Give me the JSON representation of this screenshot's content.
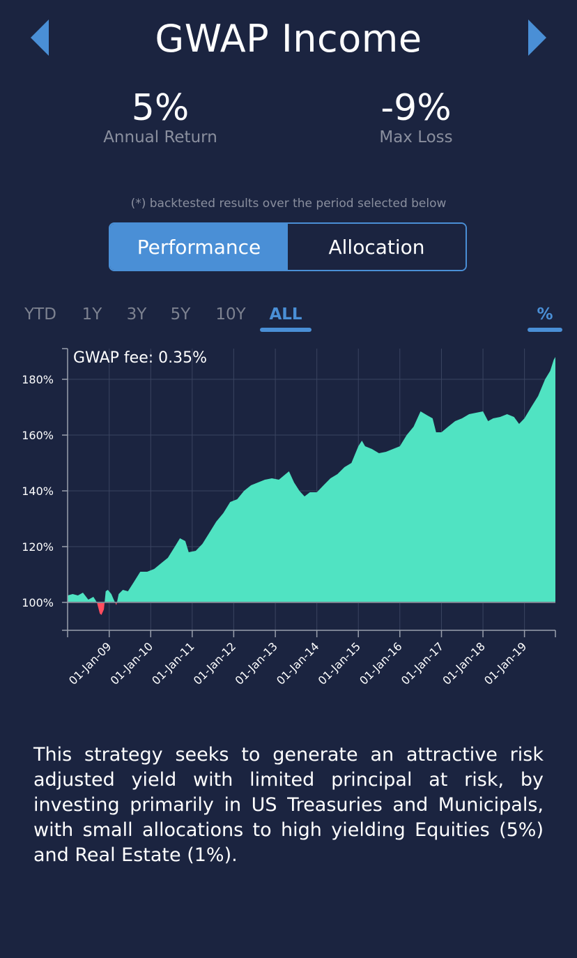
{
  "header": {
    "title": "GWAP Income"
  },
  "stats": {
    "annual_return": {
      "value": "5%",
      "label": "Annual Return"
    },
    "max_loss": {
      "value": "-9%",
      "label": "Max Loss"
    }
  },
  "note": "(*) backtested results over the period selected below",
  "tabs": {
    "performance": "Performance",
    "allocation": "Allocation"
  },
  "ranges": [
    "YTD",
    "1Y",
    "3Y",
    "5Y",
    "10Y",
    "ALL"
  ],
  "selected_range": "ALL",
  "pct_toggle": "%",
  "colors": {
    "background": "#1b2440",
    "accent": "#4a8fd6",
    "gain": "#50e3c2",
    "loss": "#ff4d5e"
  },
  "chart_data": {
    "type": "area",
    "annotation": "GWAP fee: 0.35%",
    "yticks": [
      "100%",
      "120%",
      "140%",
      "160%",
      "180%"
    ],
    "ylim": [
      90,
      191
    ],
    "xticks": [
      "01-Jan-09",
      "01-Jan-10",
      "01-Jan-11",
      "01-Jan-12",
      "01-Jan-13",
      "01-Jan-14",
      "01-Jan-15",
      "01-Jan-16",
      "01-Jan-17",
      "01-Jan-18",
      "01-Jan-19"
    ],
    "x_start": "2008-01-01",
    "x_end": "2019-09-30",
    "grid": true,
    "baseline": 100,
    "series": [
      {
        "points": [
          [
            "2008-01-01",
            102.5
          ],
          [
            "2008-02-15",
            103
          ],
          [
            "2008-04-01",
            102.5
          ],
          [
            "2008-05-15",
            103.5
          ],
          [
            "2008-07-01",
            101
          ],
          [
            "2008-08-15",
            102
          ],
          [
            "2008-09-15",
            100
          ],
          [
            "2008-10-10",
            96
          ],
          [
            "2008-10-25",
            95.5
          ],
          [
            "2008-11-15",
            97.5
          ],
          [
            "2008-12-01",
            104
          ],
          [
            "2008-12-20",
            104.5
          ],
          [
            "2009-01-20",
            103
          ],
          [
            "2009-02-10",
            101
          ],
          [
            "2009-03-05",
            99
          ],
          [
            "2009-03-25",
            103
          ],
          [
            "2009-05-01",
            104.5
          ],
          [
            "2009-06-15",
            104
          ],
          [
            "2009-08-01",
            107
          ],
          [
            "2009-10-01",
            111
          ],
          [
            "2009-12-01",
            111
          ],
          [
            "2010-02-01",
            112
          ],
          [
            "2010-04-01",
            114
          ],
          [
            "2010-06-01",
            116
          ],
          [
            "2010-08-01",
            120
          ],
          [
            "2010-09-15",
            123
          ],
          [
            "2010-11-01",
            122
          ],
          [
            "2010-12-01",
            118
          ],
          [
            "2011-02-01",
            118.5
          ],
          [
            "2011-04-01",
            121
          ],
          [
            "2011-06-01",
            125
          ],
          [
            "2011-08-01",
            129
          ],
          [
            "2011-10-01",
            132
          ],
          [
            "2011-12-01",
            136
          ],
          [
            "2012-02-01",
            137
          ],
          [
            "2012-04-01",
            140
          ],
          [
            "2012-06-01",
            142
          ],
          [
            "2012-08-01",
            143
          ],
          [
            "2012-10-01",
            144
          ],
          [
            "2012-12-01",
            144.5
          ],
          [
            "2013-02-01",
            144
          ],
          [
            "2013-04-01",
            146
          ],
          [
            "2013-05-01",
            147
          ],
          [
            "2013-06-15",
            143
          ],
          [
            "2013-08-01",
            140
          ],
          [
            "2013-09-15",
            138
          ],
          [
            "2013-11-01",
            139.5
          ],
          [
            "2014-01-01",
            139.5
          ],
          [
            "2014-03-01",
            142
          ],
          [
            "2014-05-01",
            144.5
          ],
          [
            "2014-07-01",
            146
          ],
          [
            "2014-09-01",
            148.5
          ],
          [
            "2014-11-01",
            150
          ],
          [
            "2015-01-01",
            156
          ],
          [
            "2015-02-01",
            158
          ],
          [
            "2015-03-01",
            156
          ],
          [
            "2015-05-01",
            155
          ],
          [
            "2015-07-01",
            153.5
          ],
          [
            "2015-09-01",
            154
          ],
          [
            "2015-11-01",
            155
          ],
          [
            "2016-01-01",
            156
          ],
          [
            "2016-03-01",
            160
          ],
          [
            "2016-05-01",
            163
          ],
          [
            "2016-07-01",
            168.5
          ],
          [
            "2016-09-01",
            167
          ],
          [
            "2016-10-15",
            166
          ],
          [
            "2016-11-15",
            161
          ],
          [
            "2017-01-01",
            161
          ],
          [
            "2017-03-01",
            163
          ],
          [
            "2017-05-01",
            165
          ],
          [
            "2017-07-01",
            166
          ],
          [
            "2017-09-01",
            167.5
          ],
          [
            "2017-11-01",
            168
          ],
          [
            "2018-01-01",
            168.5
          ],
          [
            "2018-02-15",
            165
          ],
          [
            "2018-04-01",
            166
          ],
          [
            "2018-06-01",
            166.5
          ],
          [
            "2018-08-01",
            167.5
          ],
          [
            "2018-10-01",
            166.5
          ],
          [
            "2018-11-15",
            164
          ],
          [
            "2019-01-01",
            166
          ],
          [
            "2019-03-01",
            170
          ],
          [
            "2019-05-01",
            174
          ],
          [
            "2019-07-01",
            180
          ],
          [
            "2019-08-15",
            183
          ],
          [
            "2019-09-15",
            187
          ],
          [
            "2019-09-30",
            188
          ]
        ]
      }
    ]
  },
  "description": "This strategy seeks to generate an attractive risk adjusted yield with limited principal at risk, by investing primarily in US Treasuries and Municipals, with small allocations to high yielding Equities (5%) and Real Estate (1%)."
}
